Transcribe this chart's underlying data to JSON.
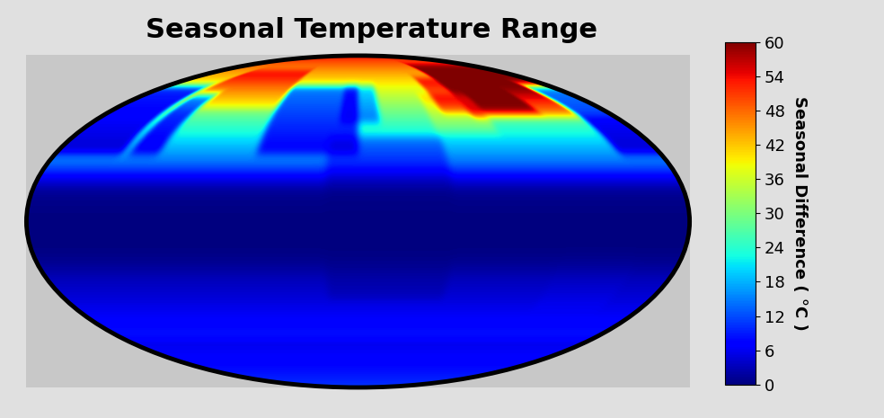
{
  "title": "Seasonal Temperature Range",
  "title_fontsize": 22,
  "colorbar_label": "Seasonal Difference ( °C )",
  "colorbar_ticks": [
    0,
    6,
    12,
    18,
    24,
    30,
    36,
    42,
    48,
    54,
    60
  ],
  "vmin": 0,
  "vmax": 60,
  "cmap": "jet",
  "figure_bg_color": "#e0e0e0",
  "ocean_color": "#c8c8c8",
  "figsize": [
    9.84,
    4.65
  ],
  "dpi": 100,
  "colorbar_fontsize": 13,
  "colorbar_label_fontsize": 13,
  "colorbar_label_fontweight": "bold"
}
